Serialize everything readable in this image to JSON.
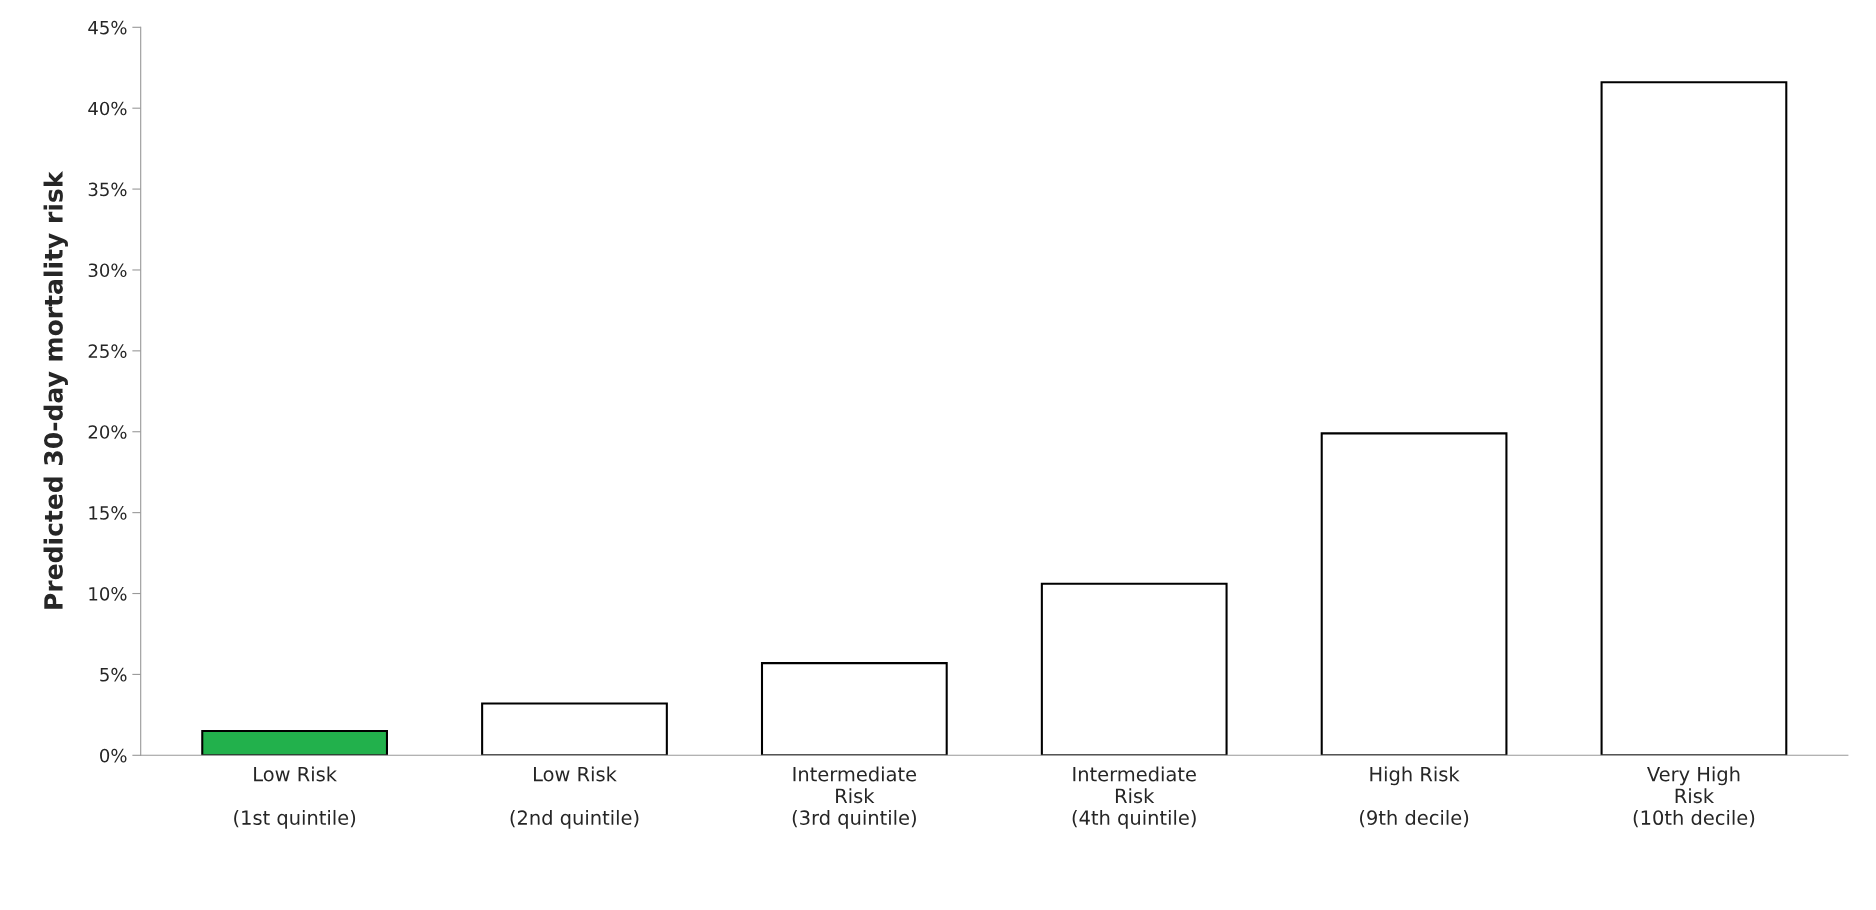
{
  "chart_data": {
    "type": "bar",
    "ylabel": "Predicted 30-day mortality risk",
    "categories": [
      "Low Risk\n\n(1st quintile)",
      "Low Risk\n\n(2nd quintile)",
      "Intermediate\nRisk\n(3rd quintile)",
      "Intermediate\nRisk\n(4th quintile)",
      "High Risk\n\n(9th decile)",
      "Very High\nRisk\n(10th decile)"
    ],
    "values": [
      1.5,
      3.2,
      5.7,
      10.6,
      19.9,
      41.6
    ],
    "colors": [
      "#22b14c",
      "#ffffff",
      "#ffffff",
      "#ffffff",
      "#ffffff",
      "#ffffff"
    ],
    "ylim": [
      0,
      45
    ],
    "yticks": [
      {
        "value": 0,
        "label": "0%"
      },
      {
        "value": 5,
        "label": "5%"
      },
      {
        "value": 10,
        "label": "10%"
      },
      {
        "value": 15,
        "label": "15%"
      },
      {
        "value": 20,
        "label": "20%"
      },
      {
        "value": 25,
        "label": "25%"
      },
      {
        "value": 30,
        "label": "30%"
      },
      {
        "value": 35,
        "label": "35%"
      },
      {
        "value": 40,
        "label": "40%"
      },
      {
        "value": 45,
        "label": "45%"
      }
    ],
    "grid": false,
    "legend": false
  }
}
